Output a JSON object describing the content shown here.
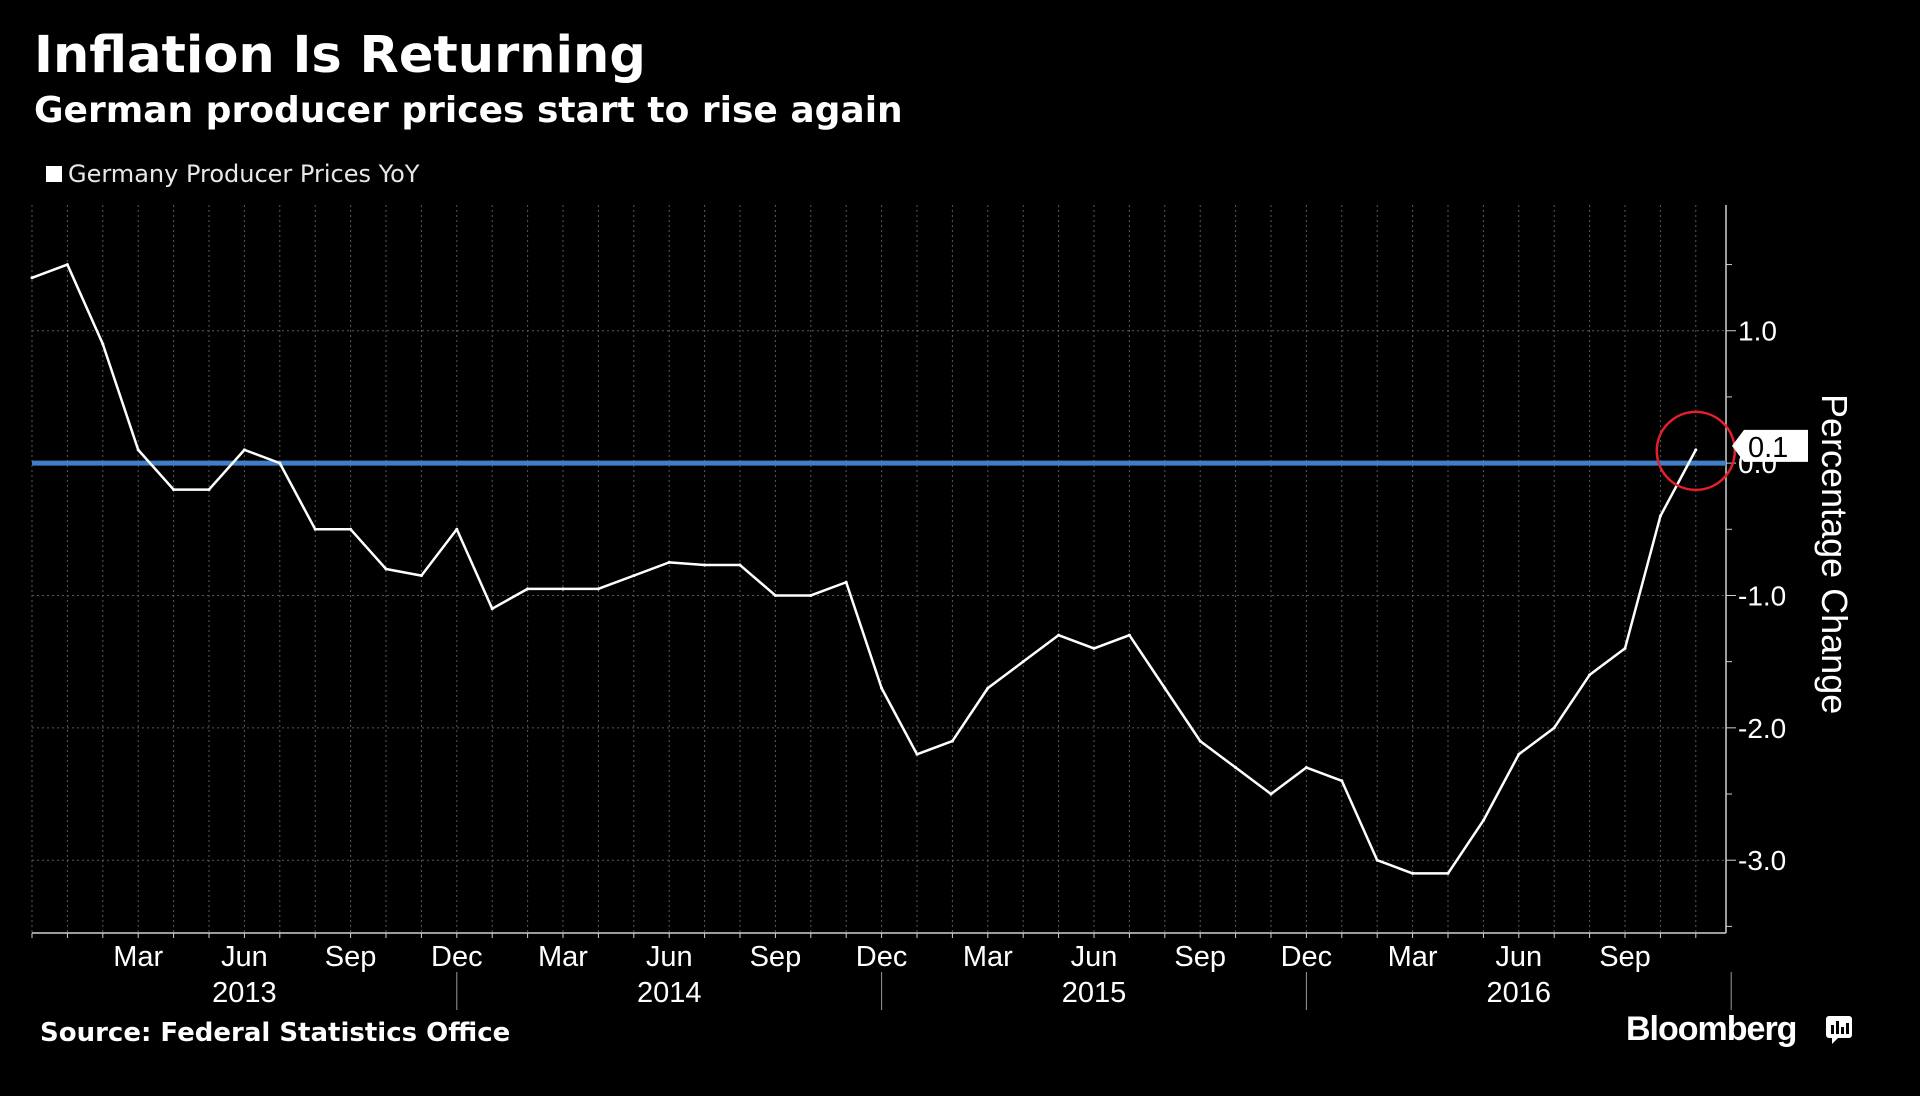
{
  "header": {
    "title": "Inflation Is Returning",
    "subtitle": "German producer prices start to rise again"
  },
  "legend": {
    "label": "Germany Producer Prices YoY",
    "swatch_color": "#ffffff"
  },
  "footer": {
    "source": "Source: Federal Statistics Office",
    "brand": "Bloomberg",
    "brand_icon": "bloomberg-chart-icon"
  },
  "chart_data": {
    "type": "line",
    "title": "Inflation Is Returning",
    "subtitle": "German producer prices start to rise again",
    "ylabel": "Percentage Change",
    "xlabel": "",
    "ylim": [
      -3.55,
      1.95
    ],
    "yticks": [
      1.0,
      0.0,
      -1.0,
      -2.0,
      -3.0
    ],
    "ytick_labels": [
      "1.0",
      "0.0",
      "-1.0",
      "-2.0",
      "-3.0"
    ],
    "grid": true,
    "reference_line": {
      "value": 0.0,
      "color": "#3f7fc8"
    },
    "x_months": [
      "2012-12",
      "2013-01",
      "2013-02",
      "2013-03",
      "2013-04",
      "2013-05",
      "2013-06",
      "2013-07",
      "2013-08",
      "2013-09",
      "2013-10",
      "2013-11",
      "2013-12",
      "2014-01",
      "2014-02",
      "2014-03",
      "2014-04",
      "2014-05",
      "2014-06",
      "2014-07",
      "2014-08",
      "2014-09",
      "2014-10",
      "2014-11",
      "2014-12",
      "2015-01",
      "2015-02",
      "2015-03",
      "2015-04",
      "2015-05",
      "2015-06",
      "2015-07",
      "2015-08",
      "2015-09",
      "2015-10",
      "2015-11",
      "2015-12",
      "2016-01",
      "2016-02",
      "2016-03",
      "2016-04",
      "2016-05",
      "2016-06",
      "2016-07",
      "2016-08",
      "2016-09",
      "2016-10",
      "2016-11"
    ],
    "x_tick_labels": [
      {
        "label": "Mar",
        "index": 3
      },
      {
        "label": "Jun",
        "index": 6
      },
      {
        "label": "Sep",
        "index": 9
      },
      {
        "label": "Dec",
        "index": 12
      },
      {
        "label": "Mar",
        "index": 15
      },
      {
        "label": "Jun",
        "index": 18
      },
      {
        "label": "Sep",
        "index": 21
      },
      {
        "label": "Dec",
        "index": 24
      },
      {
        "label": "Mar",
        "index": 27
      },
      {
        "label": "Jun",
        "index": 30
      },
      {
        "label": "Sep",
        "index": 33
      },
      {
        "label": "Dec",
        "index": 36
      },
      {
        "label": "Mar",
        "index": 39
      },
      {
        "label": "Jun",
        "index": 42
      },
      {
        "label": "Sep",
        "index": 45
      }
    ],
    "year_labels": [
      {
        "label": "2013",
        "index": 6
      },
      {
        "label": "2014",
        "index": 18
      },
      {
        "label": "2015",
        "index": 30
      },
      {
        "label": "2016",
        "index": 42
      }
    ],
    "year_separators": [
      12,
      24,
      36,
      48
    ],
    "series": [
      {
        "name": "Germany Producer Prices YoY",
        "color": "#ffffff",
        "values": [
          1.4,
          1.5,
          0.9,
          0.1,
          -0.2,
          -0.2,
          0.1,
          0.0,
          -0.5,
          -0.5,
          -0.8,
          -0.85,
          -0.5,
          -1.1,
          -0.95,
          -0.95,
          -0.95,
          -0.85,
          -0.75,
          -0.77,
          -0.77,
          -1.0,
          -1.0,
          -0.9,
          -1.7,
          -2.2,
          -2.1,
          -1.7,
          -1.5,
          -1.3,
          -1.4,
          -1.3,
          -1.7,
          -2.1,
          -2.3,
          -2.5,
          -2.3,
          -2.4,
          -3.0,
          -3.1,
          -3.1,
          -2.7,
          -2.2,
          -2.0,
          -1.6,
          -1.4,
          -0.4,
          0.1
        ]
      }
    ],
    "last_value_label": "0.1",
    "highlight_circle_index": 47
  }
}
